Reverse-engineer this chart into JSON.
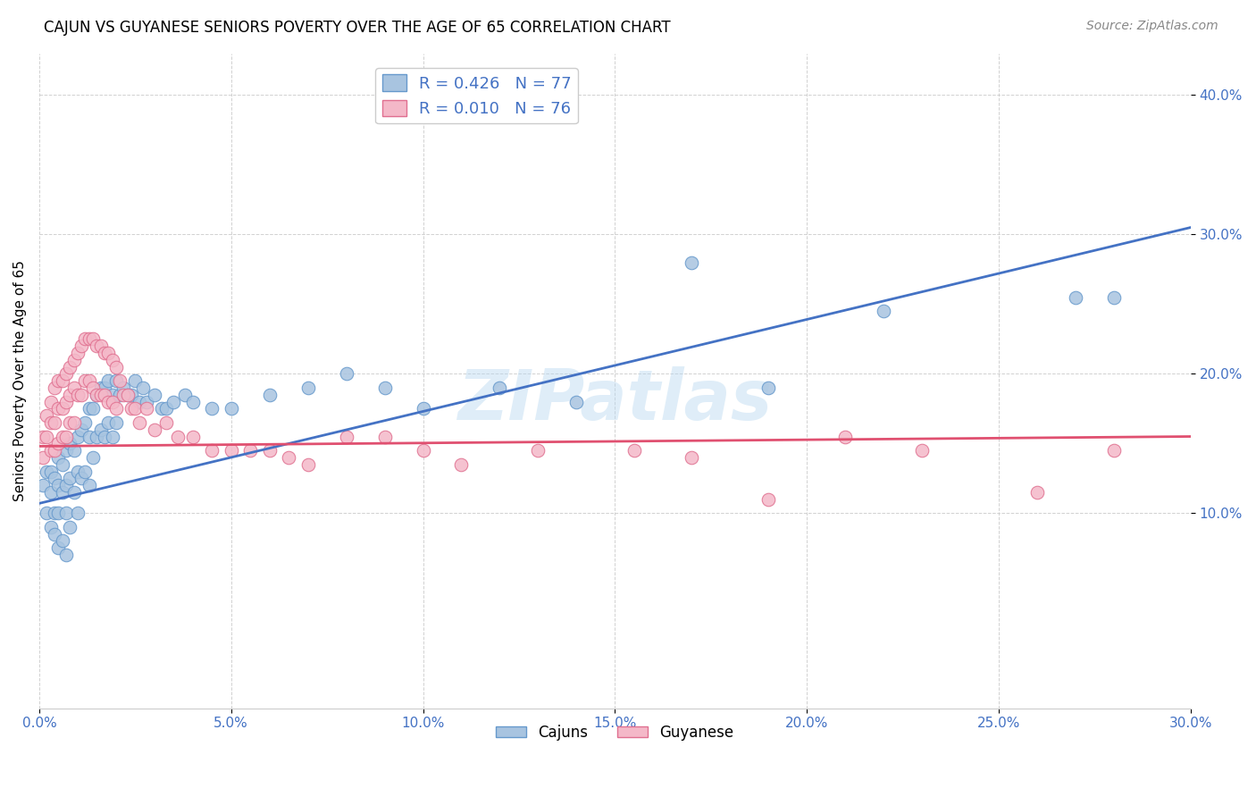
{
  "title": "CAJUN VS GUYANESE SENIORS POVERTY OVER THE AGE OF 65 CORRELATION CHART",
  "source": "Source: ZipAtlas.com",
  "ylabel": "Seniors Poverty Over the Age of 65",
  "watermark": "ZIPatlas",
  "cajun_R": 0.426,
  "cajun_N": 77,
  "guyanese_R": 0.01,
  "guyanese_N": 76,
  "xlim": [
    0.0,
    0.3
  ],
  "ylim": [
    -0.04,
    0.43
  ],
  "ytick_values": [
    0.1,
    0.2,
    0.3,
    0.4
  ],
  "xtick_values": [
    0.0,
    0.05,
    0.1,
    0.15,
    0.2,
    0.25,
    0.3
  ],
  "cajun_color": "#a8c4e0",
  "cajun_edge_color": "#6699cc",
  "guyanese_color": "#f4b8c8",
  "guyanese_edge_color": "#e07090",
  "line_cajun_color": "#4472c4",
  "line_guyanese_color": "#e05070",
  "cajun_x": [
    0.001,
    0.002,
    0.002,
    0.003,
    0.003,
    0.003,
    0.004,
    0.004,
    0.004,
    0.005,
    0.005,
    0.005,
    0.005,
    0.006,
    0.006,
    0.006,
    0.007,
    0.007,
    0.007,
    0.007,
    0.008,
    0.008,
    0.008,
    0.009,
    0.009,
    0.01,
    0.01,
    0.01,
    0.011,
    0.011,
    0.012,
    0.012,
    0.013,
    0.013,
    0.013,
    0.014,
    0.014,
    0.015,
    0.015,
    0.016,
    0.016,
    0.017,
    0.017,
    0.018,
    0.018,
    0.019,
    0.019,
    0.02,
    0.02,
    0.021,
    0.022,
    0.023,
    0.024,
    0.025,
    0.026,
    0.027,
    0.028,
    0.03,
    0.032,
    0.033,
    0.035,
    0.038,
    0.04,
    0.045,
    0.05,
    0.06,
    0.07,
    0.08,
    0.09,
    0.1,
    0.12,
    0.14,
    0.17,
    0.19,
    0.22,
    0.27,
    0.28
  ],
  "cajun_y": [
    0.12,
    0.13,
    0.1,
    0.13,
    0.115,
    0.09,
    0.125,
    0.1,
    0.085,
    0.14,
    0.12,
    0.1,
    0.075,
    0.135,
    0.115,
    0.08,
    0.145,
    0.12,
    0.1,
    0.07,
    0.15,
    0.125,
    0.09,
    0.145,
    0.115,
    0.155,
    0.13,
    0.1,
    0.16,
    0.125,
    0.165,
    0.13,
    0.175,
    0.155,
    0.12,
    0.175,
    0.14,
    0.185,
    0.155,
    0.19,
    0.16,
    0.19,
    0.155,
    0.195,
    0.165,
    0.185,
    0.155,
    0.195,
    0.165,
    0.185,
    0.19,
    0.185,
    0.185,
    0.195,
    0.18,
    0.19,
    0.18,
    0.185,
    0.175,
    0.175,
    0.18,
    0.185,
    0.18,
    0.175,
    0.175,
    0.185,
    0.19,
    0.2,
    0.19,
    0.175,
    0.19,
    0.18,
    0.28,
    0.19,
    0.245,
    0.255,
    0.255
  ],
  "guyanese_x": [
    0.001,
    0.001,
    0.002,
    0.002,
    0.003,
    0.003,
    0.003,
    0.004,
    0.004,
    0.004,
    0.005,
    0.005,
    0.005,
    0.006,
    0.006,
    0.006,
    0.007,
    0.007,
    0.007,
    0.008,
    0.008,
    0.008,
    0.009,
    0.009,
    0.009,
    0.01,
    0.01,
    0.011,
    0.011,
    0.012,
    0.012,
    0.013,
    0.013,
    0.014,
    0.014,
    0.015,
    0.015,
    0.016,
    0.016,
    0.017,
    0.017,
    0.018,
    0.018,
    0.019,
    0.019,
    0.02,
    0.02,
    0.021,
    0.022,
    0.023,
    0.024,
    0.025,
    0.026,
    0.028,
    0.03,
    0.033,
    0.036,
    0.04,
    0.045,
    0.05,
    0.055,
    0.06,
    0.065,
    0.07,
    0.08,
    0.09,
    0.1,
    0.11,
    0.13,
    0.155,
    0.17,
    0.19,
    0.21,
    0.23,
    0.26,
    0.28
  ],
  "guyanese_y": [
    0.155,
    0.14,
    0.17,
    0.155,
    0.18,
    0.165,
    0.145,
    0.19,
    0.165,
    0.145,
    0.195,
    0.175,
    0.15,
    0.195,
    0.175,
    0.155,
    0.2,
    0.18,
    0.155,
    0.205,
    0.185,
    0.165,
    0.21,
    0.19,
    0.165,
    0.215,
    0.185,
    0.22,
    0.185,
    0.225,
    0.195,
    0.225,
    0.195,
    0.225,
    0.19,
    0.22,
    0.185,
    0.22,
    0.185,
    0.215,
    0.185,
    0.215,
    0.18,
    0.21,
    0.18,
    0.205,
    0.175,
    0.195,
    0.185,
    0.185,
    0.175,
    0.175,
    0.165,
    0.175,
    0.16,
    0.165,
    0.155,
    0.155,
    0.145,
    0.145,
    0.145,
    0.145,
    0.14,
    0.135,
    0.155,
    0.155,
    0.145,
    0.135,
    0.145,
    0.145,
    0.14,
    0.11,
    0.155,
    0.145,
    0.115,
    0.145
  ],
  "cajun_line_x0": 0.0,
  "cajun_line_x1": 0.3,
  "cajun_line_y0": 0.107,
  "cajun_line_y1": 0.305,
  "guyanese_line_x0": 0.0,
  "guyanese_line_x1": 0.3,
  "guyanese_line_y0": 0.148,
  "guyanese_line_y1": 0.155
}
